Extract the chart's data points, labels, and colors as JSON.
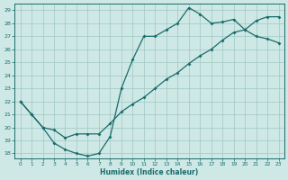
{
  "xlabel": "Humidex (Indice chaleur)",
  "xlim_min": -0.5,
  "xlim_max": 23.5,
  "ylim_min": 17.6,
  "ylim_max": 29.5,
  "xticks": [
    0,
    1,
    2,
    3,
    4,
    5,
    6,
    7,
    8,
    9,
    10,
    11,
    12,
    13,
    14,
    15,
    16,
    17,
    18,
    19,
    20,
    21,
    22,
    23
  ],
  "yticks": [
    18,
    19,
    20,
    21,
    22,
    23,
    24,
    25,
    26,
    27,
    28,
    29
  ],
  "bg_color": "#cde8e5",
  "line_color": "#1a6b6b",
  "curve_upper_x": [
    0,
    1,
    2,
    3,
    4,
    5,
    6,
    7,
    8,
    9,
    10,
    11,
    12,
    13,
    14,
    15,
    16,
    17,
    18,
    19,
    20,
    21,
    22,
    23
  ],
  "curve_upper_y": [
    22,
    21,
    20,
    19.8,
    19.2,
    19.5,
    19.5,
    19.5,
    20.3,
    21.2,
    21.8,
    22.3,
    23.0,
    23.7,
    24.2,
    24.9,
    25.5,
    26.0,
    26.7,
    27.3,
    27.5,
    28.2,
    28.5,
    28.5
  ],
  "curve_lower_x": [
    0,
    1,
    2,
    3,
    4,
    5,
    6,
    7,
    8,
    9,
    10,
    11,
    12,
    13,
    14,
    15,
    16,
    17,
    18,
    19,
    20,
    21,
    22,
    23
  ],
  "curve_lower_y": [
    22,
    21,
    20,
    18.8,
    18.3,
    18.0,
    17.8,
    18.0,
    19.3,
    23.0,
    25.2,
    27.0,
    27.0,
    27.5,
    28.0,
    29.2,
    28.7,
    28.0,
    28.1,
    28.3,
    27.5,
    27.0,
    26.8,
    26.5
  ]
}
